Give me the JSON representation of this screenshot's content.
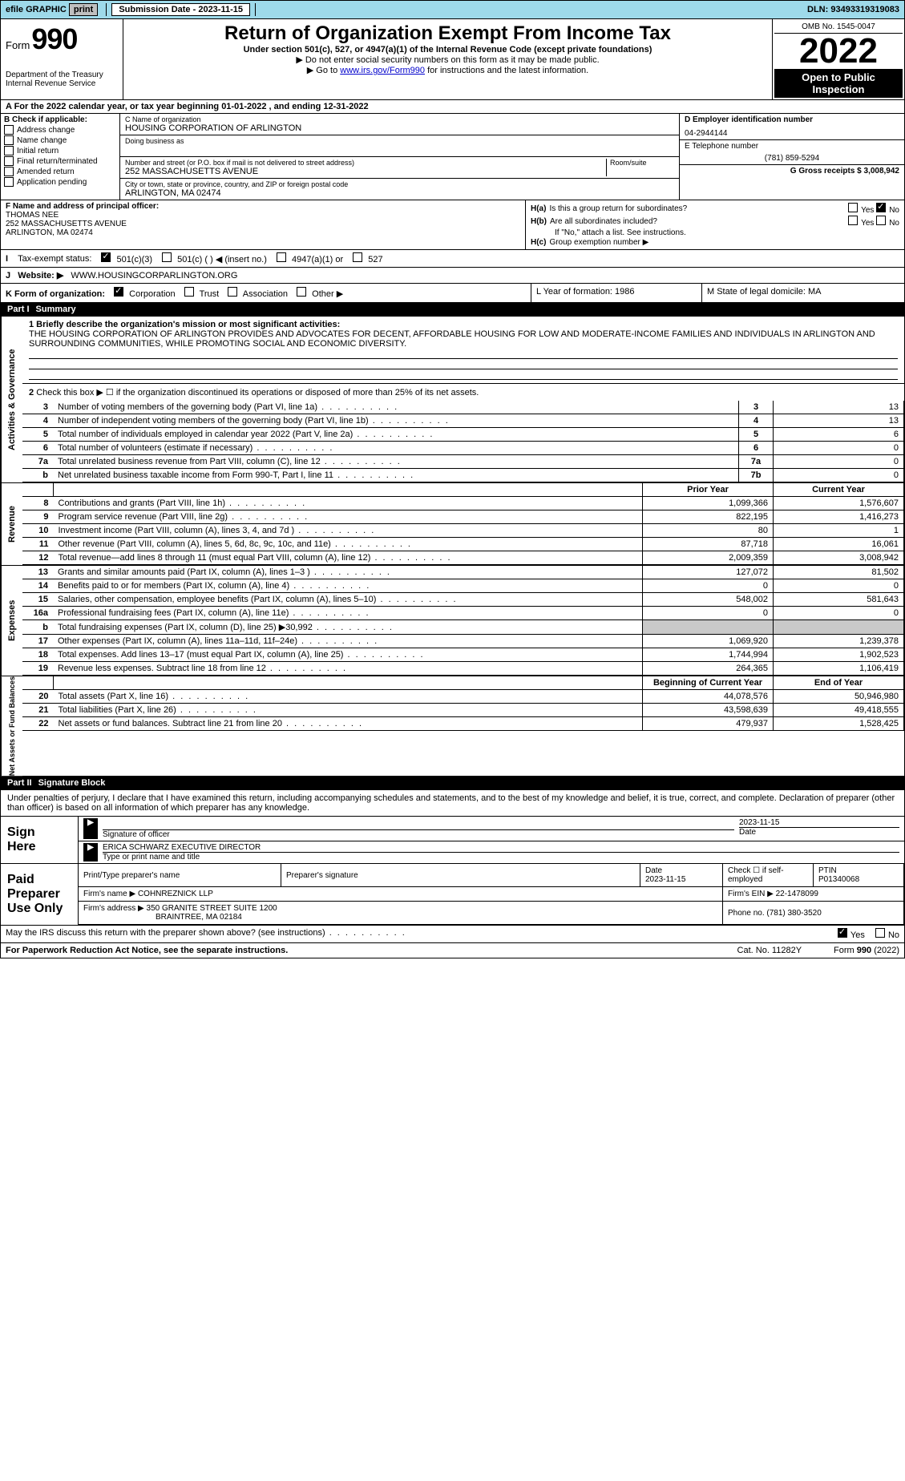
{
  "topbar": {
    "efile_label": "efile GRAPHIC",
    "print_label": "print",
    "submission_label": "Submission Date - 2023-11-15",
    "dln": "DLN: 93493319319083"
  },
  "header": {
    "form_word": "Form",
    "form_no": "990",
    "title": "Return of Organization Exempt From Income Tax",
    "subtitle": "Under section 501(c), 527, or 4947(a)(1) of the Internal Revenue Code (except private foundations)",
    "note1": "▶ Do not enter social security numbers on this form as it may be made public.",
    "note2_pre": "▶ Go to ",
    "note2_link": "www.irs.gov/Form990",
    "note2_post": " for instructions and the latest information.",
    "dept": "Department of the Treasury",
    "irs": "Internal Revenue Service",
    "omb": "OMB No. 1545-0047",
    "year": "2022",
    "open1": "Open to Public",
    "open2": "Inspection"
  },
  "row_a": "A For the 2022 calendar year, or tax year beginning 01-01-2022    , and ending 12-31-2022",
  "block_b": {
    "title": "B Check if applicable:",
    "items": [
      "Address change",
      "Name change",
      "Initial return",
      "Final return/terminated",
      "Amended return",
      "Application pending"
    ]
  },
  "block_c": {
    "name_label": "C Name of organization",
    "name": "HOUSING CORPORATION OF ARLINGTON",
    "dba_label": "Doing business as",
    "addr_label": "Number and street (or P.O. box if mail is not delivered to street address)",
    "room_label": "Room/suite",
    "addr": "252 MASSACHUSETTS AVENUE",
    "city_label": "City or town, state or province, country, and ZIP or foreign postal code",
    "city": "ARLINGTON, MA  02474"
  },
  "block_de": {
    "d_label": "D Employer identification number",
    "d_val": "04-2944144",
    "e_label": "E Telephone number",
    "e_val": "(781) 859-5294",
    "g_label": "G Gross receipts $ 3,008,942"
  },
  "block_f": {
    "label": "F Name and address of principal officer:",
    "name": "THOMAS NEE",
    "addr1": "252 MASSACHUSETTS AVENUE",
    "addr2": "ARLINGTON, MA  02474"
  },
  "block_h": {
    "ha_label": "H(a)",
    "ha_text": "Is this a group return for subordinates?",
    "hb_label": "H(b)",
    "hb_text": "Are all subordinates included?",
    "hb_note": "If \"No,\" attach a list. See instructions.",
    "hc_label": "H(c)",
    "hc_text": "Group exemption number ▶",
    "yes": "Yes",
    "no": "No"
  },
  "row_i": {
    "label": "I",
    "text": "Tax-exempt status:",
    "opt1": "501(c)(3)",
    "opt2": "501(c) (   ) ◀ (insert no.)",
    "opt3": "4947(a)(1) or",
    "opt4": "527"
  },
  "row_j": {
    "label": "J",
    "text": "Website: ▶",
    "val": "WWW.HOUSINGCORPARLINGTON.ORG"
  },
  "row_k": {
    "label": "K Form of organization:",
    "opts": [
      "Corporation",
      "Trust",
      "Association",
      "Other ▶"
    ],
    "l_label": "L Year of formation: 1986",
    "m_label": "M State of legal domicile: MA"
  },
  "part1": {
    "partno": "Part I",
    "title": "Summary"
  },
  "governance": {
    "vlabel": "Activities & Governance",
    "line1_label": "1 Briefly describe the organization's mission or most significant activities:",
    "line1_text": "THE HOUSING CORPORATION OF ARLINGTON PROVIDES AND ADVOCATES FOR DECENT, AFFORDABLE HOUSING FOR LOW AND MODERATE-INCOME FAMILIES AND INDIVIDUALS IN ARLINGTON AND SURROUNDING COMMUNITIES, WHILE PROMOTING SOCIAL AND ECONOMIC DIVERSITY.",
    "line2": "Check this box ▶ ☐ if the organization discontinued its operations or disposed of more than 25% of its net assets.",
    "rows": [
      {
        "no": "3",
        "desc": "Number of voting members of the governing body (Part VI, line 1a)",
        "box": "3",
        "val": "13"
      },
      {
        "no": "4",
        "desc": "Number of independent voting members of the governing body (Part VI, line 1b)",
        "box": "4",
        "val": "13"
      },
      {
        "no": "5",
        "desc": "Total number of individuals employed in calendar year 2022 (Part V, line 2a)",
        "box": "5",
        "val": "6"
      },
      {
        "no": "6",
        "desc": "Total number of volunteers (estimate if necessary)",
        "box": "6",
        "val": "0"
      },
      {
        "no": "7a",
        "desc": "Total unrelated business revenue from Part VIII, column (C), line 12",
        "box": "7a",
        "val": "0"
      },
      {
        "no": "b",
        "desc": "Net unrelated business taxable income from Form 990-T, Part I, line 11",
        "box": "7b",
        "val": "0"
      }
    ]
  },
  "revenue": {
    "vlabel": "Revenue",
    "head_prior": "Prior Year",
    "head_curr": "Current Year",
    "rows": [
      {
        "no": "8",
        "desc": "Contributions and grants (Part VIII, line 1h)",
        "prior": "1,099,366",
        "curr": "1,576,607"
      },
      {
        "no": "9",
        "desc": "Program service revenue (Part VIII, line 2g)",
        "prior": "822,195",
        "curr": "1,416,273"
      },
      {
        "no": "10",
        "desc": "Investment income (Part VIII, column (A), lines 3, 4, and 7d )",
        "prior": "80",
        "curr": "1"
      },
      {
        "no": "11",
        "desc": "Other revenue (Part VIII, column (A), lines 5, 6d, 8c, 9c, 10c, and 11e)",
        "prior": "87,718",
        "curr": "16,061"
      },
      {
        "no": "12",
        "desc": "Total revenue—add lines 8 through 11 (must equal Part VIII, column (A), line 12)",
        "prior": "2,009,359",
        "curr": "3,008,942"
      }
    ]
  },
  "expenses": {
    "vlabel": "Expenses",
    "rows": [
      {
        "no": "13",
        "desc": "Grants and similar amounts paid (Part IX, column (A), lines 1–3 )",
        "prior": "127,072",
        "curr": "81,502"
      },
      {
        "no": "14",
        "desc": "Benefits paid to or for members (Part IX, column (A), line 4)",
        "prior": "0",
        "curr": "0"
      },
      {
        "no": "15",
        "desc": "Salaries, other compensation, employee benefits (Part IX, column (A), lines 5–10)",
        "prior": "548,002",
        "curr": "581,643"
      },
      {
        "no": "16a",
        "desc": "Professional fundraising fees (Part IX, column (A), line 11e)",
        "prior": "0",
        "curr": "0"
      },
      {
        "no": "b",
        "desc": "Total fundraising expenses (Part IX, column (D), line 25) ▶30,992",
        "prior": "",
        "curr": "",
        "shade": true
      },
      {
        "no": "17",
        "desc": "Other expenses (Part IX, column (A), lines 11a–11d, 11f–24e)",
        "prior": "1,069,920",
        "curr": "1,239,378"
      },
      {
        "no": "18",
        "desc": "Total expenses. Add lines 13–17 (must equal Part IX, column (A), line 25)",
        "prior": "1,744,994",
        "curr": "1,902,523"
      },
      {
        "no": "19",
        "desc": "Revenue less expenses. Subtract line 18 from line 12",
        "prior": "264,365",
        "curr": "1,106,419"
      }
    ]
  },
  "netassets": {
    "vlabel": "Net Assets or Fund Balances",
    "head_prior": "Beginning of Current Year",
    "head_curr": "End of Year",
    "rows": [
      {
        "no": "20",
        "desc": "Total assets (Part X, line 16)",
        "prior": "44,078,576",
        "curr": "50,946,980"
      },
      {
        "no": "21",
        "desc": "Total liabilities (Part X, line 26)",
        "prior": "43,598,639",
        "curr": "49,418,555"
      },
      {
        "no": "22",
        "desc": "Net assets or fund balances. Subtract line 21 from line 20",
        "prior": "479,937",
        "curr": "1,528,425"
      }
    ]
  },
  "part2": {
    "partno": "Part II",
    "title": "Signature Block"
  },
  "sig": {
    "declare": "Under penalties of perjury, I declare that I have examined this return, including accompanying schedules and statements, and to the best of my knowledge and belief, it is true, correct, and complete. Declaration of preparer (other than officer) is based on all information of which preparer has any knowledge.",
    "sign": "Sign",
    "here": "Here",
    "sig_label": "Signature of officer",
    "date_label": "Date",
    "date_val": "2023-11-15",
    "name": "ERICA SCHWARZ  EXECUTIVE DIRECTOR",
    "name_label": "Type or print name and title"
  },
  "preparer": {
    "label1": "Paid",
    "label2": "Preparer",
    "label3": "Use Only",
    "h1": "Print/Type preparer's name",
    "h2": "Preparer's signature",
    "h3": "Date",
    "h3_val": "2023-11-15",
    "h4": "Check ☐ if self-employed",
    "h5": "PTIN",
    "h5_val": "P01340068",
    "firm_name_label": "Firm's name    ▶",
    "firm_name": "COHNREZNICK LLP",
    "firm_ein_label": "Firm's EIN ▶ 22-1478099",
    "firm_addr_label": "Firm's address ▶",
    "firm_addr1": "350 GRANITE STREET SUITE 1200",
    "firm_addr2": "BRAINTREE, MA  02184",
    "phone_label": "Phone no. (781) 380-3520"
  },
  "discuss": {
    "text": "May the IRS discuss this return with the preparer shown above? (see instructions)",
    "yes": "Yes",
    "no": "No"
  },
  "footer": {
    "left": "For Paperwork Reduction Act Notice, see the separate instructions.",
    "mid": "Cat. No. 11282Y",
    "right": "Form 990 (2022)"
  }
}
